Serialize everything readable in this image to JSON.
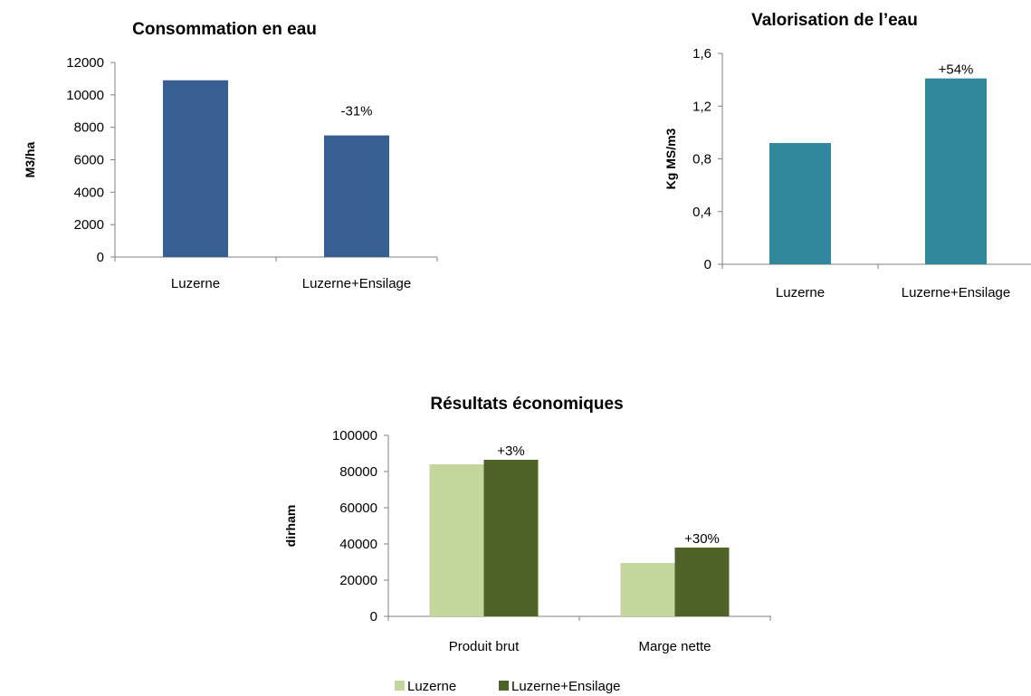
{
  "chart_data": [
    {
      "type": "bar",
      "title": "Consommation en eau",
      "ylabel": "M3/ha",
      "xlabel": "",
      "categories": [
        "Luzerne",
        "Luzerne+Ensilage"
      ],
      "values": [
        10900,
        7500
      ],
      "ylim": [
        0,
        12000
      ],
      "yticks": [
        "0",
        "2000",
        "4000",
        "6000",
        "8000",
        "10000",
        "12000"
      ],
      "annotations": [
        "",
        "-31%"
      ],
      "color": "#375f92",
      "grid": false
    },
    {
      "type": "bar",
      "title": "Valorisation de l’eau",
      "ylabel": "Kg MS/m3",
      "xlabel": "",
      "categories": [
        "Luzerne",
        "Luzerne+Ensilage"
      ],
      "values": [
        0.92,
        1.41
      ],
      "ylim": [
        0,
        1.6
      ],
      "yticks": [
        "0",
        "0,4",
        "0,8",
        "1,2",
        "1,6"
      ],
      "annotations": [
        "",
        "+54%"
      ],
      "color": "#31889d",
      "grid": false
    },
    {
      "type": "bar",
      "title": "Résultats économiques",
      "ylabel": "dirham",
      "xlabel": "",
      "categories": [
        "Produit brut",
        "Marge nette"
      ],
      "series": [
        {
          "name": "Luzerne",
          "values": [
            84000,
            29500
          ],
          "color": "#c3d69b"
        },
        {
          "name": "Luzerne+Ensilage",
          "values": [
            86500,
            38000
          ],
          "color": "#4f6228"
        }
      ],
      "annotations": [
        "+3%",
        "+30%"
      ],
      "ylim": [
        0,
        100000
      ],
      "yticks": [
        "0",
        "20000",
        "40000",
        "60000",
        "80000",
        "100000"
      ],
      "legend": "bottom",
      "grid": false
    }
  ]
}
